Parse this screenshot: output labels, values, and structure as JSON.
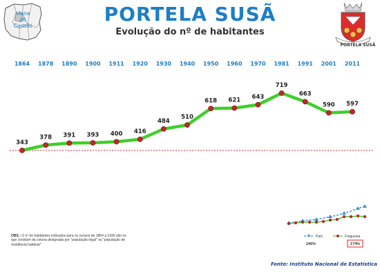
{
  "header": {
    "title": "PORTELA SUSÃ",
    "subtitle": "Evolução do nº de habitantes",
    "map_label_1": "Viana",
    "map_label_2": "do",
    "map_label_3": "Castelo",
    "crest_label": "PORTELA SUSÃ"
  },
  "colors": {
    "title": "#1e7fc4",
    "line": "#3fcf2a",
    "marker": "#c0262c",
    "year_label": "#1e7fc4",
    "reference_line": "#e0202a"
  },
  "chart_data": {
    "type": "line",
    "x": [
      "1864",
      "1878",
      "1890",
      "1900",
      "1911",
      "1920",
      "1930",
      "1940",
      "1950",
      "1960",
      "1970",
      "1981",
      "1991",
      "2001",
      "2011"
    ],
    "series": [
      {
        "values": [
          343,
          378,
          391,
          393,
          400,
          416,
          484,
          510,
          618,
          621,
          643,
          719,
          663,
          590,
          597
        ]
      }
    ],
    "reference_line": 343,
    "grid": false,
    "y_axis_visible": false
  },
  "inset": {
    "legend_country": "País",
    "legend_parish": "Freguesia",
    "country_pct": "246%",
    "parish_pct": "174%"
  },
  "note": {
    "label": "OBS.:",
    "text": "O nº de habitantes indicados para os censos de 1864 a 1930 são os que constam da coluna designada por \"população legal\" ou \"população de residência habitual\""
  },
  "source": "Fonte: Instituto Nacional de Estatística"
}
